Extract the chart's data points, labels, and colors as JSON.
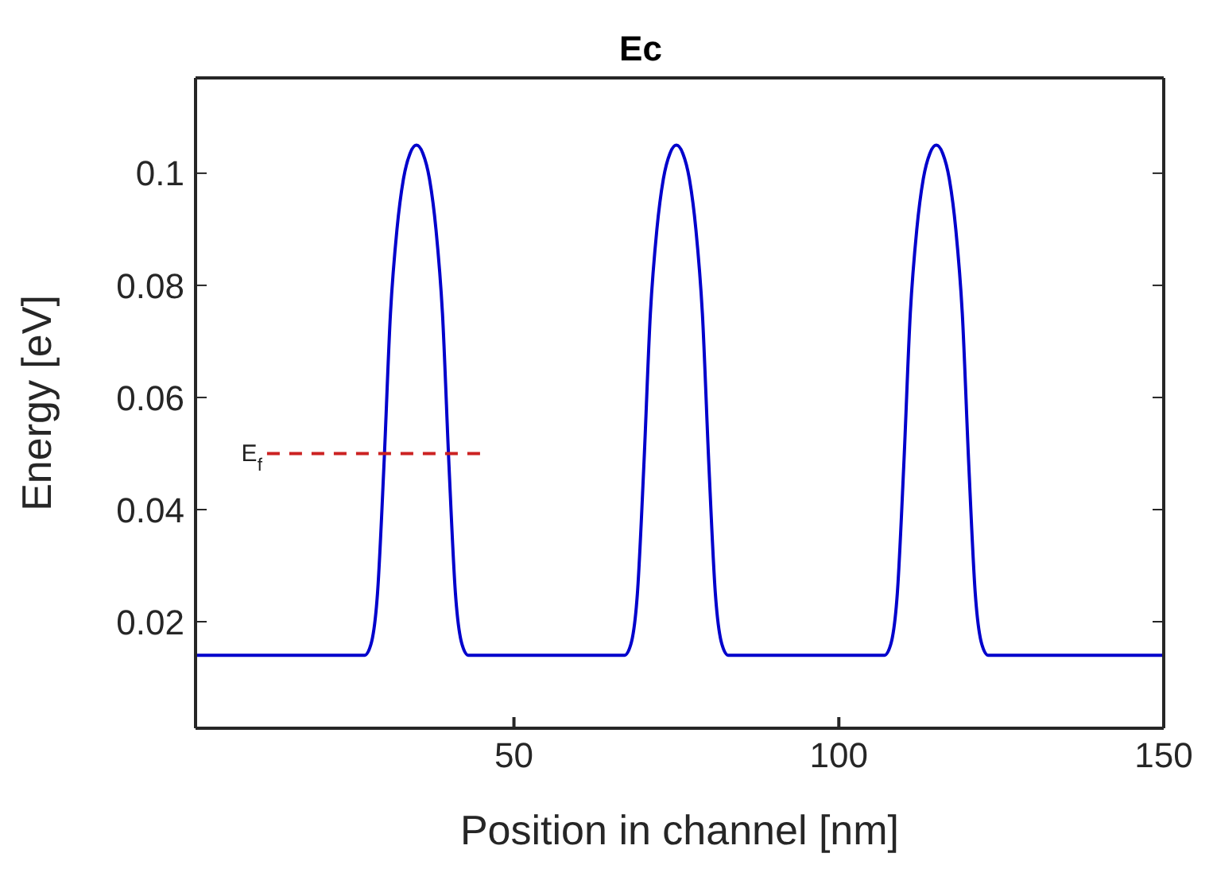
{
  "chart_data": {
    "type": "line",
    "title": "Ec",
    "xlabel": "Position in channel [nm]",
    "ylabel": "Energy [eV]",
    "xlim": [
      1,
      150
    ],
    "xticks": [
      50,
      100,
      150
    ],
    "ylim": [
      0.001,
      0.117
    ],
    "yticks": [
      0.02,
      0.04,
      0.06,
      0.08,
      0.1
    ],
    "series": [
      {
        "color": "#0000cc",
        "x": [
          1,
          27,
          28,
          29,
          30,
          31,
          32,
          33,
          34,
          35,
          36,
          37,
          38,
          39,
          40,
          41,
          42,
          43,
          67,
          68,
          69,
          70,
          71,
          72,
          73,
          74,
          75,
          76,
          77,
          78,
          79,
          80,
          81,
          82,
          83,
          107,
          108,
          109,
          110,
          111,
          112,
          113,
          114,
          115,
          116,
          117,
          118,
          119,
          120,
          121,
          122,
          123,
          150
        ],
        "values": [
          0.014,
          0.014,
          0.016,
          0.025,
          0.048,
          0.075,
          0.09,
          0.099,
          0.1035,
          0.105,
          0.1035,
          0.099,
          0.09,
          0.075,
          0.048,
          0.025,
          0.016,
          0.014,
          0.014,
          0.016,
          0.025,
          0.048,
          0.075,
          0.09,
          0.099,
          0.1035,
          0.105,
          0.1035,
          0.099,
          0.09,
          0.075,
          0.048,
          0.025,
          0.016,
          0.014,
          0.014,
          0.016,
          0.025,
          0.048,
          0.075,
          0.09,
          0.099,
          0.1035,
          0.105,
          0.1035,
          0.099,
          0.09,
          0.075,
          0.048,
          0.025,
          0.016,
          0.014,
          0.014
        ]
      },
      {
        "name": "E$_{f}$",
        "color": "#cc2222",
        "line_style": "dashed",
        "x": [
          12,
          45
        ],
        "values": [
          0.05,
          0.05
        ]
      }
    ]
  }
}
